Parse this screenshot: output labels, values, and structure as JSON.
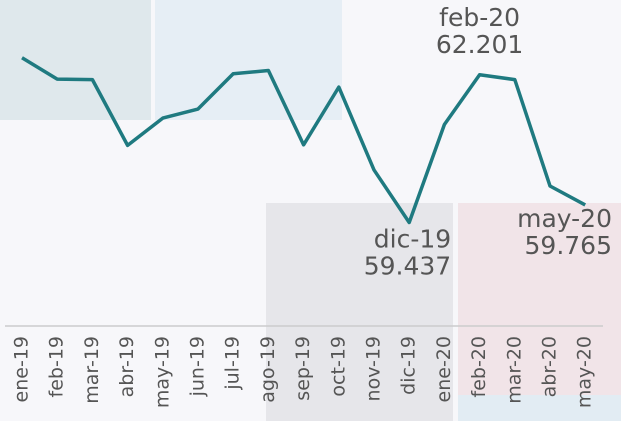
{
  "chart_data": {
    "type": "line",
    "categories": [
      "ene-19",
      "feb-19",
      "mar-19",
      "abr-19",
      "may-19",
      "jun-19",
      "jul-19",
      "ago-19",
      "sep-19",
      "oct-19",
      "nov-19",
      "dic-19",
      "ene-20",
      "feb-20",
      "mar-20",
      "abr-20",
      "may-20"
    ],
    "series": [
      {
        "name": null,
        "color": "#1f7a80",
        "values": [
          62.52,
          62.12,
          62.11,
          60.88,
          61.39,
          61.56,
          62.22,
          62.28,
          60.89,
          61.97,
          60.42,
          59.437,
          61.27,
          62.201,
          62.11,
          60.12,
          59.765
        ]
      }
    ],
    "labeled_points": [
      "dic-19",
      "feb-20",
      "may-20"
    ],
    "ylim": [
      57.5,
      63.6
    ]
  }
}
